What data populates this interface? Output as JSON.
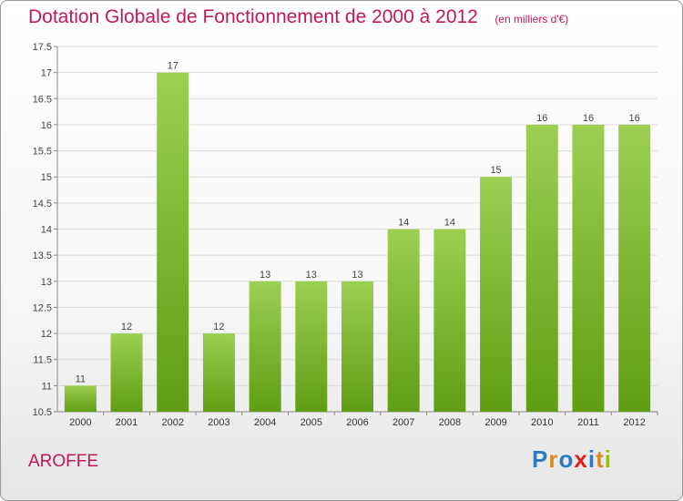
{
  "header": {
    "title": "Dotation Globale de Fonctionnement de 2000 à 2012",
    "subtitle": "(en milliers d'€)"
  },
  "footer": {
    "commune": "AROFFE",
    "logo_text": "Proxiti"
  },
  "colors": {
    "title": "#c2185b",
    "bar_top": "#9ccf52",
    "bar_bottom": "#5f9e13",
    "logo_letters": [
      "#2e7bbf",
      "#e08a1e",
      "#2e7bbf",
      "#e0201e",
      "#2e7bbf",
      "#e08a1e",
      "#8fbf1e"
    ]
  },
  "chart_data": {
    "type": "bar",
    "categories": [
      "2000",
      "2001",
      "2002",
      "2003",
      "2004",
      "2005",
      "2006",
      "2007",
      "2008",
      "2009",
      "2010",
      "2011",
      "2012"
    ],
    "values": [
      11,
      12,
      17,
      12,
      13,
      13,
      13,
      14,
      14,
      15,
      16,
      16,
      16
    ],
    "value_labels": [
      "11",
      "12",
      "17",
      "12",
      "13",
      "13",
      "13",
      "14",
      "14",
      "15",
      "16",
      "16",
      "16"
    ],
    "ylim": [
      10.5,
      17.5
    ],
    "yticks": [
      10.5,
      11,
      11.5,
      12,
      12.5,
      13,
      13.5,
      14,
      14.5,
      15,
      15.5,
      16,
      16.5,
      17,
      17.5
    ],
    "ytick_labels": [
      "10.5",
      "11",
      "11.5",
      "12",
      "12.5",
      "13",
      "13.5",
      "14",
      "14.5",
      "15",
      "15.5",
      "16",
      "16.5",
      "17",
      "17.5"
    ],
    "grid": true,
    "legend": "none",
    "title": "Dotation Globale de Fonctionnement de 2000 à 2012"
  }
}
